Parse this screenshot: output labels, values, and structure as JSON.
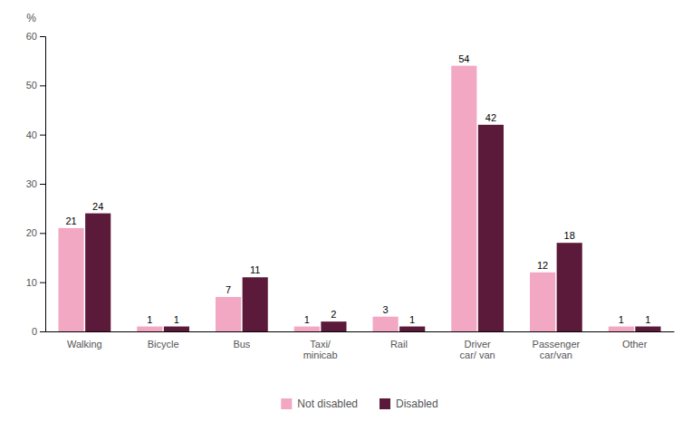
{
  "chart_data": {
    "type": "bar",
    "y_label": "%",
    "categories": [
      "Walking",
      "Bicycle",
      "Bus",
      "Taxi/\nminicab",
      "Rail",
      "Driver\ncar/ van",
      "Passenger\ncar/van",
      "Other"
    ],
    "series": [
      {
        "name": "Not disabled",
        "color": "#f2a7c3",
        "values": [
          21,
          1,
          7,
          1,
          3,
          54,
          12,
          1
        ]
      },
      {
        "name": "Disabled",
        "color": "#5c1a3a",
        "values": [
          24,
          1,
          11,
          2,
          1,
          42,
          18,
          1
        ]
      }
    ],
    "ylim": [
      0,
      60
    ],
    "yticks": [
      0,
      10,
      20,
      30,
      40,
      50,
      60
    ],
    "grid": false,
    "legend": "bottom",
    "data_labels": true
  }
}
